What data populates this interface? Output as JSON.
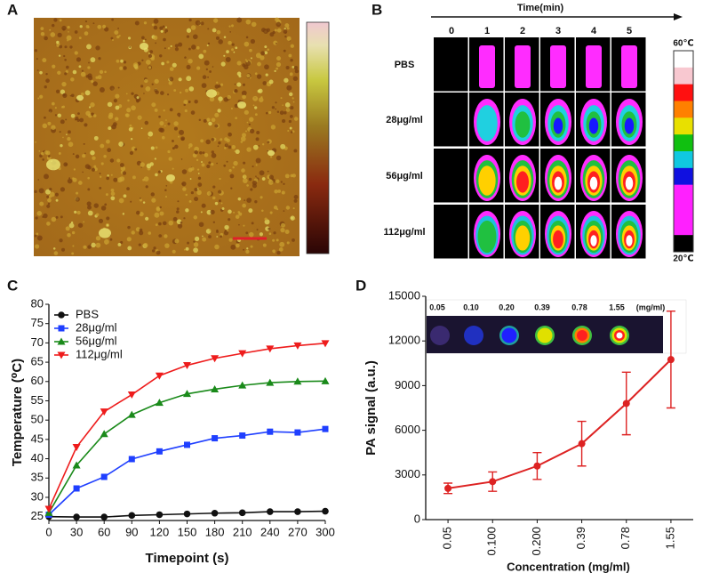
{
  "panel_labels": [
    "A",
    "B",
    "C",
    "D"
  ],
  "thermal": {
    "axis_label": "Time(min)",
    "times": [
      "0",
      "1",
      "2",
      "3",
      "4",
      "5"
    ],
    "rows": [
      "PBS",
      "28μg/ml",
      "56μg/ml",
      "112μg/ml"
    ],
    "scale_max": "60℃",
    "scale_min": "20℃"
  },
  "chart_data": [
    {
      "type": "line",
      "x_label": "Timepoint (s)",
      "y_label": "Temperature (⁰C)",
      "x": [
        0,
        30,
        60,
        90,
        120,
        150,
        180,
        210,
        240,
        270,
        300
      ],
      "xlim": [
        0,
        300
      ],
      "xticks": [
        0,
        30,
        60,
        90,
        120,
        150,
        180,
        210,
        240,
        270,
        300
      ],
      "ylim": [
        24,
        80
      ],
      "yticks": [
        25,
        30,
        35,
        40,
        45,
        50,
        55,
        60,
        65,
        70,
        75,
        80
      ],
      "legend": "upper left",
      "series": [
        {
          "name": "PBS",
          "color": "#111111",
          "marker": "circle",
          "values": [
            25,
            24.9,
            24.9,
            25.3,
            25.5,
            25.7,
            25.9,
            26.0,
            26.3,
            26.3,
            26.4
          ]
        },
        {
          "name": "28μg/ml",
          "color": "#1f3fff",
          "marker": "square",
          "values": [
            25.5,
            32.3,
            35.3,
            39.9,
            41.9,
            43.6,
            45.3,
            46.0,
            47.0,
            46.8,
            47.7
          ]
        },
        {
          "name": "56μg/ml",
          "color": "#1a8a1a",
          "marker": "triangle-up",
          "values": [
            26,
            38.3,
            46.4,
            51.4,
            54.5,
            56.8,
            58.0,
            59.0,
            59.7,
            60.0,
            60.1
          ]
        },
        {
          "name": "112μg/ml",
          "color": "#ee1c1c",
          "marker": "triangle-down",
          "values": [
            27,
            43.0,
            52.2,
            56.6,
            61.5,
            64.2,
            66.0,
            67.3,
            68.5,
            69.3,
            69.9
          ]
        }
      ]
    },
    {
      "type": "errorbar",
      "x_label": "Concentration (mg/ml)",
      "y_label": "PA signal (a.u.)",
      "categories": [
        "0.05",
        "0.100",
        "0.200",
        "0.39",
        "0.78",
        "1.55"
      ],
      "values": [
        2100,
        2550,
        3600,
        5100,
        7800,
        10750
      ],
      "errors": [
        350,
        650,
        900,
        1500,
        2100,
        3250
      ],
      "color": "#dd2222",
      "ylim": [
        0,
        15000
      ],
      "yticks": [
        0,
        3000,
        6000,
        9000,
        12000,
        15000
      ],
      "inset_labels": [
        "0.05",
        "0.10",
        "0.20",
        "0.39",
        "0.78",
        "1.55",
        "(mg/ml)"
      ]
    }
  ]
}
